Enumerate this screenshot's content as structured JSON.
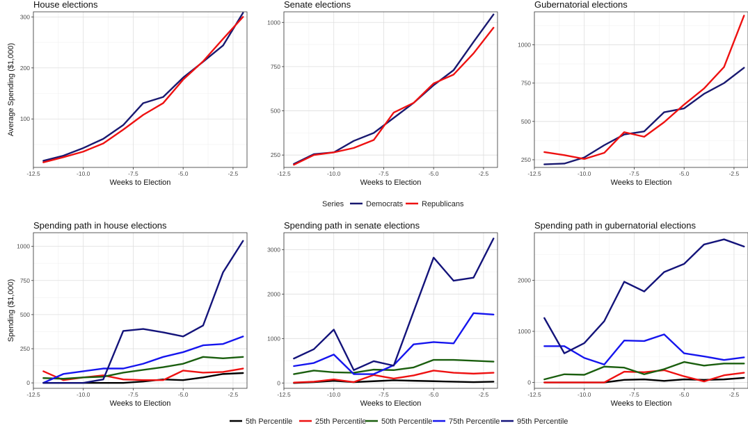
{
  "legends": {
    "top": {
      "title": "Series",
      "items": [
        {
          "label": "Democrats",
          "color": "#191970"
        },
        {
          "label": "Republicans",
          "color": "#ee1111"
        }
      ]
    },
    "bottom": {
      "items": [
        {
          "label": "5th Percentile",
          "color": "#000000"
        },
        {
          "label": "25th Percentile",
          "color": "#ee1111"
        },
        {
          "label": "50th Percentile",
          "color": "#1a5e0e"
        },
        {
          "label": "75th Percentile",
          "color": "#1515ee"
        },
        {
          "label": "95th Percentile",
          "color": "#13137a"
        }
      ]
    }
  },
  "chart_data": [
    {
      "type": "line",
      "title": "House elections",
      "xlabel": "Weeks to Election",
      "ylabel": "Average Spending ($1,000)",
      "xlim": [
        -12.5,
        -1.8
      ],
      "ylim": [
        5,
        310
      ],
      "xticks": [
        -12.5,
        -10.0,
        -7.5,
        -5.0,
        -2.5
      ],
      "xtick_labels": [
        "-12.5",
        "-10.0",
        "-7.5",
        "-5.0",
        "-2.5"
      ],
      "yticks": [
        100,
        200,
        300
      ],
      "ytick_labels": [
        "100",
        "200",
        "300"
      ],
      "grid": true,
      "x": [
        -12,
        -11,
        -10,
        -9,
        -8,
        -7,
        -6,
        -5,
        -4,
        -3,
        -2
      ],
      "series": [
        {
          "name": "Democrats",
          "color": "#191970",
          "values": [
            18,
            28,
            43,
            61,
            88,
            131,
            143,
            181,
            212,
            244,
            308
          ]
        },
        {
          "name": "Republicans",
          "color": "#ee1111",
          "values": [
            15,
            25,
            36,
            52,
            79,
            108,
            131,
            177,
            213,
            257,
            300
          ]
        }
      ]
    },
    {
      "type": "line",
      "title": "Senate elections",
      "xlabel": "Weeks to Election",
      "ylabel": "",
      "xlim": [
        -12.5,
        -1.8
      ],
      "ylim": [
        180,
        1060
      ],
      "xticks": [
        -12.5,
        -10.0,
        -7.5,
        -5.0,
        -2.5
      ],
      "xtick_labels": [
        "-12.5",
        "-10.0",
        "-7.5",
        "-5.0",
        "-2.5"
      ],
      "yticks": [
        250,
        500,
        750,
        1000
      ],
      "ytick_labels": [
        "250",
        "500",
        "750",
        "1000"
      ],
      "grid": true,
      "x": [
        -12,
        -11,
        -10,
        -9,
        -8,
        -7,
        -6,
        -5,
        -4,
        -3,
        -2
      ],
      "series": [
        {
          "name": "Democrats",
          "color": "#191970",
          "values": [
            200,
            255,
            265,
            330,
            375,
            460,
            545,
            645,
            730,
            890,
            1045
          ]
        },
        {
          "name": "Republicans",
          "color": "#ee1111",
          "values": [
            195,
            250,
            265,
            290,
            335,
            490,
            545,
            655,
            705,
            825,
            970
          ]
        }
      ]
    },
    {
      "type": "line",
      "title": "Gubernatorial elections",
      "xlabel": "Weeks to Election",
      "ylabel": "",
      "xlim": [
        -12.5,
        -1.8
      ],
      "ylim": [
        200,
        1215
      ],
      "xticks": [
        -12.5,
        -10.0,
        -7.5,
        -5.0,
        -2.5
      ],
      "xtick_labels": [
        "-12.5",
        "-10.0",
        "-7.5",
        "-5.0",
        "-2.5"
      ],
      "yticks": [
        250,
        500,
        750,
        1000
      ],
      "ytick_labels": [
        "250",
        "500",
        "750",
        "1000"
      ],
      "grid": true,
      "x": [
        -12,
        -11,
        -10,
        -9,
        -8,
        -7,
        -6,
        -5,
        -4,
        -3,
        -2
      ],
      "series": [
        {
          "name": "Democrats",
          "color": "#191970",
          "values": [
            220,
            225,
            265,
            345,
            415,
            435,
            560,
            585,
            680,
            750,
            850
          ]
        },
        {
          "name": "Republicans",
          "color": "#ee1111",
          "values": [
            300,
            280,
            255,
            295,
            430,
            400,
            495,
            610,
            715,
            855,
            1190
          ]
        }
      ]
    },
    {
      "type": "line",
      "title": "Spending path in house elections",
      "xlabel": "Weeks to Election",
      "ylabel": "Spending ($1,000)",
      "xlim": [
        -12.5,
        -1.8
      ],
      "ylim": [
        -40,
        1100
      ],
      "xticks": [
        -12.5,
        -10.0,
        -7.5,
        -5.0,
        -2.5
      ],
      "xtick_labels": [
        "-12.5",
        "-10.0",
        "-7.5",
        "-5.0",
        "-2.5"
      ],
      "yticks": [
        0,
        250,
        500,
        750,
        1000
      ],
      "ytick_labels": [
        "0",
        "250",
        "500",
        "750",
        "1000"
      ],
      "grid": true,
      "x": [
        -12,
        -11,
        -10,
        -9,
        -8,
        -7,
        -6,
        -5,
        -4,
        -3,
        -2
      ],
      "series": [
        {
          "name": "5th Percentile",
          "color": "#000000",
          "values": [
            0,
            0,
            0,
            0,
            0,
            10,
            25,
            20,
            40,
            65,
            72
          ]
        },
        {
          "name": "25th Percentile",
          "color": "#ee1111",
          "values": [
            85,
            20,
            40,
            55,
            25,
            20,
            20,
            90,
            75,
            80,
            105
          ]
        },
        {
          "name": "50th Percentile",
          "color": "#1a5e0e",
          "values": [
            35,
            30,
            40,
            45,
            75,
            95,
            115,
            140,
            190,
            180,
            190
          ]
        },
        {
          "name": "75th Percentile",
          "color": "#1515ee",
          "values": [
            0,
            65,
            85,
            105,
            105,
            140,
            190,
            225,
            275,
            285,
            340
          ]
        },
        {
          "name": "95th Percentile",
          "color": "#13137a",
          "values": [
            0,
            0,
            0,
            25,
            380,
            395,
            370,
            340,
            420,
            810,
            1040
          ]
        }
      ]
    },
    {
      "type": "line",
      "title": "Spending path in senate elections",
      "xlabel": "Weeks to Election",
      "ylabel": "",
      "xlim": [
        -12.5,
        -1.8
      ],
      "ylim": [
        -120,
        3380
      ],
      "xticks": [
        -12.5,
        -10.0,
        -7.5,
        -5.0,
        -2.5
      ],
      "xtick_labels": [
        "-12.5",
        "-10.0",
        "-7.5",
        "-5.0",
        "-2.5"
      ],
      "yticks": [
        0,
        1000,
        2000,
        3000
      ],
      "ytick_labels": [
        "0",
        "1000",
        "2000",
        "3000"
      ],
      "grid": true,
      "x": [
        -12,
        -11,
        -10,
        -9,
        -8,
        -7,
        -6,
        -5,
        -4,
        -3,
        -2
      ],
      "series": [
        {
          "name": "5th Percentile",
          "color": "#000000",
          "values": [
            0,
            20,
            50,
            20,
            40,
            60,
            50,
            40,
            30,
            20,
            30
          ]
        },
        {
          "name": "25th Percentile",
          "color": "#ee1111",
          "values": [
            10,
            30,
            80,
            20,
            180,
            100,
            170,
            280,
            230,
            210,
            230
          ]
        },
        {
          "name": "50th Percentile",
          "color": "#1a5e0e",
          "values": [
            200,
            280,
            240,
            230,
            300,
            290,
            350,
            520,
            520,
            500,
            480
          ]
        },
        {
          "name": "75th Percentile",
          "color": "#1515ee",
          "values": [
            380,
            450,
            640,
            200,
            200,
            400,
            870,
            920,
            890,
            1570,
            1540
          ]
        },
        {
          "name": "95th Percentile",
          "color": "#13137a",
          "values": [
            550,
            760,
            1200,
            290,
            490,
            390,
            1610,
            2820,
            2300,
            2370,
            3250
          ]
        }
      ]
    },
    {
      "type": "line",
      "title": "Spending path in gubernatorial elections",
      "xlabel": "Weeks to Election",
      "ylabel": "",
      "xlim": [
        -12.5,
        -1.8
      ],
      "ylim": [
        -115,
        2930
      ],
      "xticks": [
        -12.5,
        -10.0,
        -7.5,
        -5.0,
        -2.5
      ],
      "xtick_labels": [
        "-12.5",
        "-10.0",
        "-7.5",
        "-5.0",
        "-2.5"
      ],
      "yticks": [
        0,
        1000,
        2000
      ],
      "ytick_labels": [
        "0",
        "1000",
        "2000"
      ],
      "grid": true,
      "x": [
        -12,
        -11,
        -10,
        -9,
        -8,
        -7,
        -6,
        -5,
        -4,
        -3,
        -2
      ],
      "series": [
        {
          "name": "5th Percentile",
          "color": "#000000",
          "values": [
            0,
            0,
            0,
            0,
            50,
            60,
            30,
            60,
            50,
            60,
            90
          ]
        },
        {
          "name": "25th Percentile",
          "color": "#ee1111",
          "values": [
            0,
            0,
            0,
            0,
            210,
            200,
            240,
            120,
            20,
            140,
            190
          ]
        },
        {
          "name": "50th Percentile",
          "color": "#1a5e0e",
          "values": [
            60,
            160,
            150,
            310,
            290,
            160,
            260,
            400,
            330,
            370,
            370
          ]
        },
        {
          "name": "75th Percentile",
          "color": "#1515ee",
          "values": [
            710,
            710,
            480,
            350,
            820,
            810,
            940,
            570,
            510,
            440,
            490
          ]
        },
        {
          "name": "95th Percentile",
          "color": "#13137a",
          "values": [
            1260,
            570,
            770,
            1200,
            1970,
            1780,
            2160,
            2320,
            2700,
            2800,
            2660
          ]
        }
      ]
    }
  ]
}
